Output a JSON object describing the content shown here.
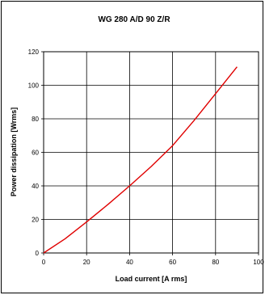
{
  "chart_data": {
    "type": "line",
    "title": "WG 280 A/D 90 Z/R",
    "xlabel": "Load current [A rms]",
    "ylabel": "Power dissipation  [Wrms]",
    "xlim": [
      0,
      100
    ],
    "ylim": [
      0,
      120
    ],
    "xticks": [
      "0",
      "20",
      "40",
      "60",
      "80",
      "100"
    ],
    "yticks": [
      "0",
      "20",
      "40",
      "60",
      "80",
      "100",
      "120"
    ],
    "grid": true,
    "legend": "none",
    "series": [
      {
        "color": "#e00000",
        "x": [
          0,
          10,
          20,
          30,
          40,
          50,
          60,
          70,
          80,
          90
        ],
        "y": [
          0,
          8.5,
          18.5,
          29,
          40,
          51.5,
          64,
          79,
          95,
          111
        ]
      }
    ]
  }
}
